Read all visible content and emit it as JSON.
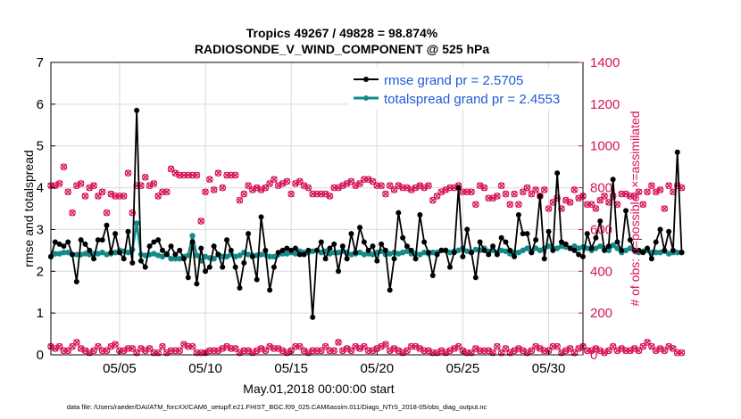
{
  "colors": {
    "rmse": "#000000",
    "spread": "#138a8a",
    "obs": "#d6125a",
    "legend_text": "#1f5bd6",
    "grid": "#d9d9d9"
  },
  "chart_data": {
    "type": "line",
    "title_line1": "Tropics 49267 / 49828 = 98.874%",
    "title_line2": "RADIOSONDE_V_WIND_COMPONENT @ 525 hPa",
    "xlabel": "May.01,2018 00:00:00 start",
    "ylabel_left": "rmse and totalspread",
    "ylabel_right": "# of obs: o=possible; ×=assimilated",
    "footer": "data file: /Users/raeder/DAI/ATM_forcXX/CAM6_setup/f.e21.FHIST_BGC.f09_025.CAM6assim.011/Diags_NTrS_2018-05/obs_diag_output.nc",
    "xlim": [
      1,
      32
    ],
    "ylim_left": [
      0,
      7
    ],
    "ylim_right": [
      0,
      1400
    ],
    "x_ticks": [
      5,
      10,
      15,
      20,
      25,
      30
    ],
    "x_tick_labels": [
      "05/05",
      "05/10",
      "05/15",
      "05/20",
      "05/25",
      "05/30"
    ],
    "y_left_ticks": [
      "0",
      "1",
      "2",
      "3",
      "4",
      "5",
      "6",
      "7"
    ],
    "y_right_ticks": [
      "0",
      "200",
      "400",
      "600",
      "800",
      "1000",
      "1200",
      "1400"
    ],
    "grid": true,
    "legend": {
      "location": "top-right",
      "entries": [
        "rmse grand pr = 2.5705",
        "totalspread grand pr = 2.4553"
      ]
    },
    "x_step": 0.25,
    "x_start": 1.0,
    "series": [
      {
        "name": "rmse",
        "axis": "left",
        "values": [
          2.35,
          2.7,
          2.65,
          2.6,
          2.7,
          2.4,
          1.75,
          2.75,
          2.65,
          2.5,
          2.3,
          2.75,
          2.75,
          3.1,
          2.45,
          2.9,
          2.45,
          2.3,
          2.95,
          2.2,
          5.85,
          2.25,
          2.1,
          2.6,
          2.7,
          2.75,
          2.5,
          2.4,
          2.6,
          2.4,
          2.5,
          2.3,
          1.85,
          2.7,
          1.7,
          2.55,
          2.0,
          2.1,
          2.6,
          2.4,
          2.1,
          2.75,
          2.5,
          2.1,
          1.6,
          2.2,
          2.9,
          2.35,
          1.8,
          3.3,
          2.5,
          1.55,
          2.1,
          2.45,
          2.5,
          2.55,
          2.5,
          2.55,
          2.4,
          2.4,
          2.5,
          0.9,
          2.5,
          2.7,
          2.3,
          2.55,
          2.65,
          2.0,
          2.6,
          2.3,
          2.9,
          2.45,
          3.05,
          2.7,
          2.5,
          2.6,
          2.25,
          2.65,
          2.5,
          1.55,
          2.3,
          3.4,
          2.8,
          2.6,
          2.5,
          2.3,
          3.35,
          2.7,
          2.45,
          1.9,
          2.4,
          2.5,
          2.5,
          2.1,
          2.45,
          4.0,
          2.35,
          3.0,
          2.45,
          1.85,
          2.7,
          2.5,
          2.4,
          2.6,
          2.4,
          2.8,
          2.7,
          2.5,
          2.35,
          3.35,
          2.9,
          2.9,
          2.45,
          2.75,
          3.8,
          2.3,
          2.95,
          2.5,
          4.35,
          2.7,
          2.65,
          2.55,
          2.5,
          2.4,
          2.35,
          2.9,
          2.55,
          2.8,
          3.2,
          2.5,
          2.6,
          4.2,
          2.7,
          2.5,
          3.45,
          2.75,
          2.5,
          2.5,
          2.45,
          2.55,
          2.3,
          2.7,
          3.0,
          2.5,
          2.95,
          2.5,
          4.85,
          2.45
        ]
      },
      {
        "name": "totalspread",
        "axis": "left",
        "values": [
          2.35,
          2.42,
          2.42,
          2.45,
          2.45,
          2.4,
          2.4,
          2.4,
          2.42,
          2.4,
          2.42,
          2.42,
          2.45,
          2.4,
          2.42,
          2.45,
          2.5,
          2.48,
          2.45,
          2.52,
          3.15,
          2.4,
          2.38,
          2.4,
          2.42,
          2.38,
          2.35,
          2.42,
          2.3,
          2.3,
          2.3,
          2.35,
          2.38,
          2.85,
          2.38,
          2.25,
          2.35,
          2.32,
          2.3,
          2.4,
          2.35,
          2.35,
          2.4,
          2.35,
          2.38,
          2.45,
          2.4,
          2.38,
          2.38,
          2.4,
          2.4,
          2.35,
          2.35,
          2.4,
          2.42,
          2.42,
          2.45,
          2.42,
          2.48,
          2.45,
          2.45,
          2.48,
          2.5,
          2.45,
          2.48,
          2.42,
          2.45,
          2.45,
          2.48,
          2.45,
          2.4,
          2.42,
          2.45,
          2.4,
          2.42,
          2.4,
          2.45,
          2.48,
          2.4,
          2.42,
          2.45,
          2.42,
          2.45,
          2.48,
          2.42,
          2.42,
          2.4,
          2.45,
          2.42,
          2.45,
          2.45,
          2.5,
          2.5,
          2.45,
          2.48,
          2.5,
          2.55,
          2.48,
          2.45,
          2.52,
          2.5,
          2.55,
          2.48,
          2.5,
          2.45,
          2.5,
          2.48,
          2.42,
          2.45,
          2.45,
          2.5,
          2.55,
          2.45,
          2.55,
          2.5,
          2.55,
          2.6,
          2.55,
          2.55,
          2.6,
          2.58,
          2.55,
          2.6,
          2.55,
          2.58,
          2.55,
          2.5,
          2.55,
          2.6,
          2.55,
          2.5,
          2.62,
          2.55,
          2.45,
          2.5,
          2.55,
          2.5,
          2.45,
          2.48,
          2.5,
          2.45,
          2.45,
          2.45,
          2.48,
          2.42,
          2.45,
          2.45,
          2.45
        ]
      },
      {
        "name": "possible_high",
        "axis": "right",
        "values": [
          810,
          810,
          820,
          900,
          780,
          680,
          810,
          820,
          760,
          800,
          810,
          760,
          780,
          680,
          770,
          760,
          760,
          760,
          870,
          680,
          810,
          810,
          850,
          810,
          820,
          760,
          780,
          780,
          890,
          870,
          860,
          860,
          860,
          860,
          860,
          640,
          780,
          840,
          790,
          870,
          800,
          860,
          860,
          860,
          740,
          770,
          810,
          790,
          800,
          790,
          800,
          820,
          840,
          810,
          820,
          830,
          770,
          820,
          830,
          810,
          800,
          770,
          770,
          770,
          770,
          760,
          800,
          800,
          810,
          820,
          830,
          810,
          820,
          840,
          840,
          830,
          810,
          810,
          770,
          810,
          790,
          810,
          800,
          800,
          790,
          800,
          810,
          800,
          810,
          740,
          760,
          780,
          790,
          800,
          800,
          810,
          780,
          780,
          780,
          720,
          810,
          800,
          750,
          750,
          760,
          810,
          770,
          720,
          770,
          720,
          780,
          800,
          770,
          790,
          760,
          790,
          700,
          730,
          750,
          700,
          740,
          730,
          790,
          750,
          760,
          720,
          720,
          700,
          740,
          760,
          730,
          760,
          720,
          770,
          770,
          760,
          760,
          780,
          720,
          780,
          810,
          780,
          790,
          700,
          810,
          780,
          810,
          800
        ]
      },
      {
        "name": "assimilated_low",
        "axis": "right",
        "values": [
          40,
          30,
          40,
          20,
          20,
          40,
          60,
          30,
          20,
          10,
          20,
          40,
          20,
          20,
          40,
          50,
          20,
          20,
          30,
          30,
          10,
          30,
          20,
          30,
          10,
          10,
          40,
          10,
          20,
          20,
          20,
          50,
          40,
          40,
          10,
          10,
          10,
          20,
          20,
          20,
          30,
          40,
          30,
          30,
          10,
          20,
          20,
          10,
          20,
          30,
          20,
          40,
          30,
          30,
          20,
          10,
          20,
          40,
          40,
          20,
          10,
          20,
          20,
          20,
          40,
          20,
          20,
          60,
          20,
          30,
          20,
          40,
          30,
          40,
          20,
          20,
          30,
          40,
          50,
          20,
          30,
          20,
          10,
          20,
          40,
          40,
          30,
          20,
          20,
          10,
          10,
          20,
          10,
          20,
          30,
          40,
          20,
          10,
          10,
          30,
          20,
          20,
          20,
          10,
          40,
          10,
          30,
          10,
          20,
          30,
          20,
          10,
          20,
          40,
          30,
          20,
          20,
          40,
          40,
          10,
          20,
          30,
          10,
          30,
          40,
          20,
          20,
          30,
          20,
          10,
          20,
          40,
          20,
          30,
          20,
          20,
          30,
          20,
          40,
          60,
          40,
          20,
          30,
          20,
          40,
          30,
          10,
          10
        ]
      }
    ]
  }
}
